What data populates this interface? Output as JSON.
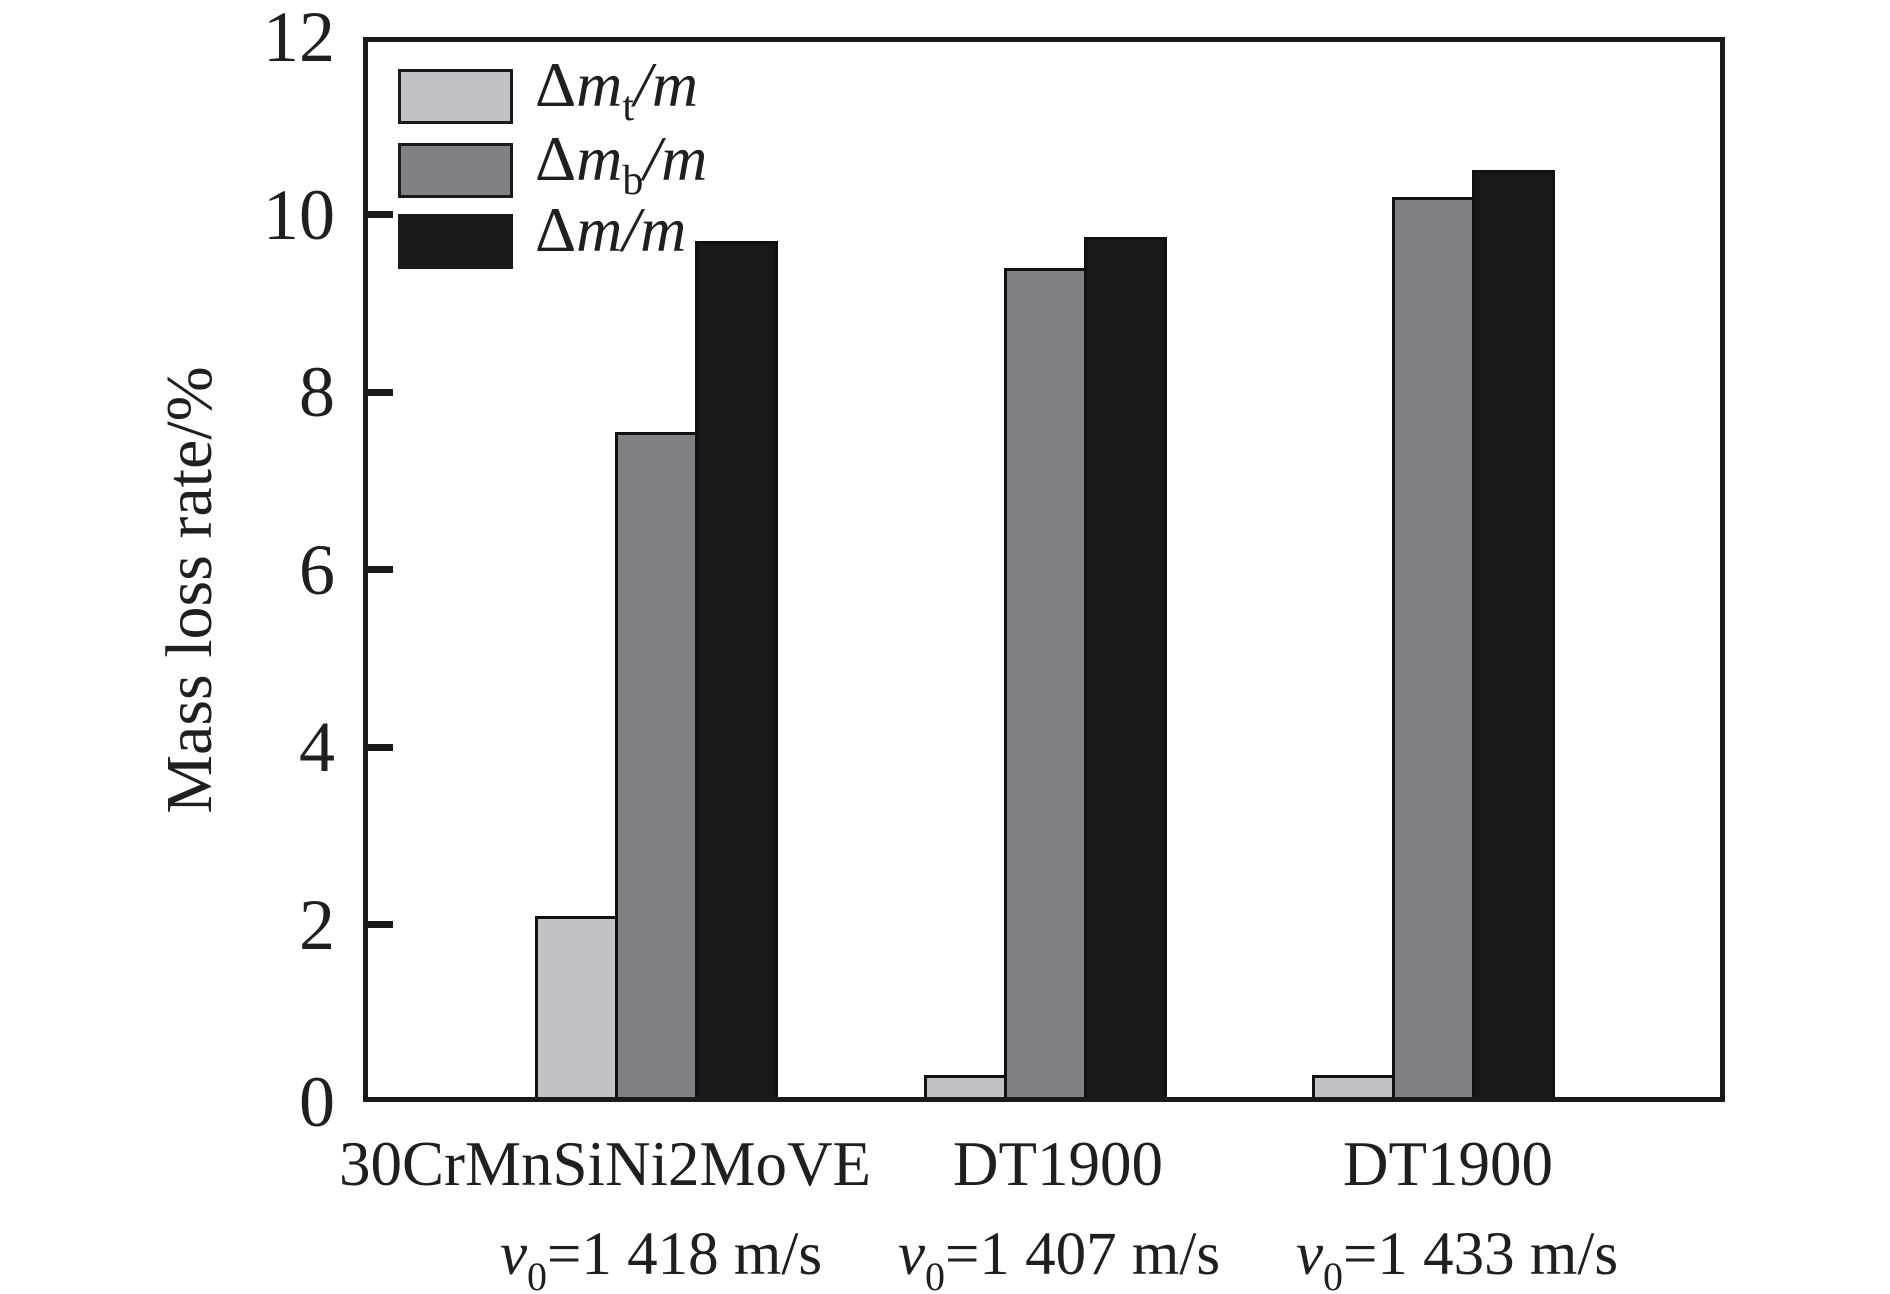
{
  "chart_data": {
    "type": "bar",
    "title": "",
    "ylabel": "Mass loss rate/%",
    "xlabel": "",
    "ylim": [
      0,
      12
    ],
    "yticks": [
      0,
      2,
      4,
      6,
      8,
      10,
      12
    ],
    "grid": false,
    "legend_position": "top-left",
    "categories": [
      {
        "material": "30CrMnSiNi2MoVE",
        "velocity": {
          "sym": "v",
          "sub": "0",
          "rest": "=1 418 m/s"
        }
      },
      {
        "material": "DT1900",
        "velocity": {
          "sym": "v",
          "sub": "0",
          "rest": "=1 407 m/s"
        }
      },
      {
        "material": "DT1900",
        "velocity": {
          "sym": "v",
          "sub": "0",
          "rest": "=1 433 m/s"
        }
      }
    ],
    "series": [
      {
        "label": {
          "delta": "Δ",
          "var": "m",
          "sub": "t",
          "rest": "/m"
        },
        "color": "#c1c2c5",
        "values": [
          2.1,
          0.3,
          0.3
        ]
      },
      {
        "label": {
          "delta": "Δ",
          "var": "m",
          "sub": "b",
          "rest": "/m"
        },
        "color": "#808186",
        "values": [
          7.55,
          9.4,
          10.2
        ]
      },
      {
        "label": {
          "delta": "Δ",
          "var": "m",
          "sub": "",
          "rest": "/m"
        },
        "color": "#181818",
        "values": [
          9.7,
          9.75,
          10.5
        ]
      }
    ],
    "colors": {
      "axis": "#1a1a1a",
      "background": "#ffffff"
    }
  }
}
